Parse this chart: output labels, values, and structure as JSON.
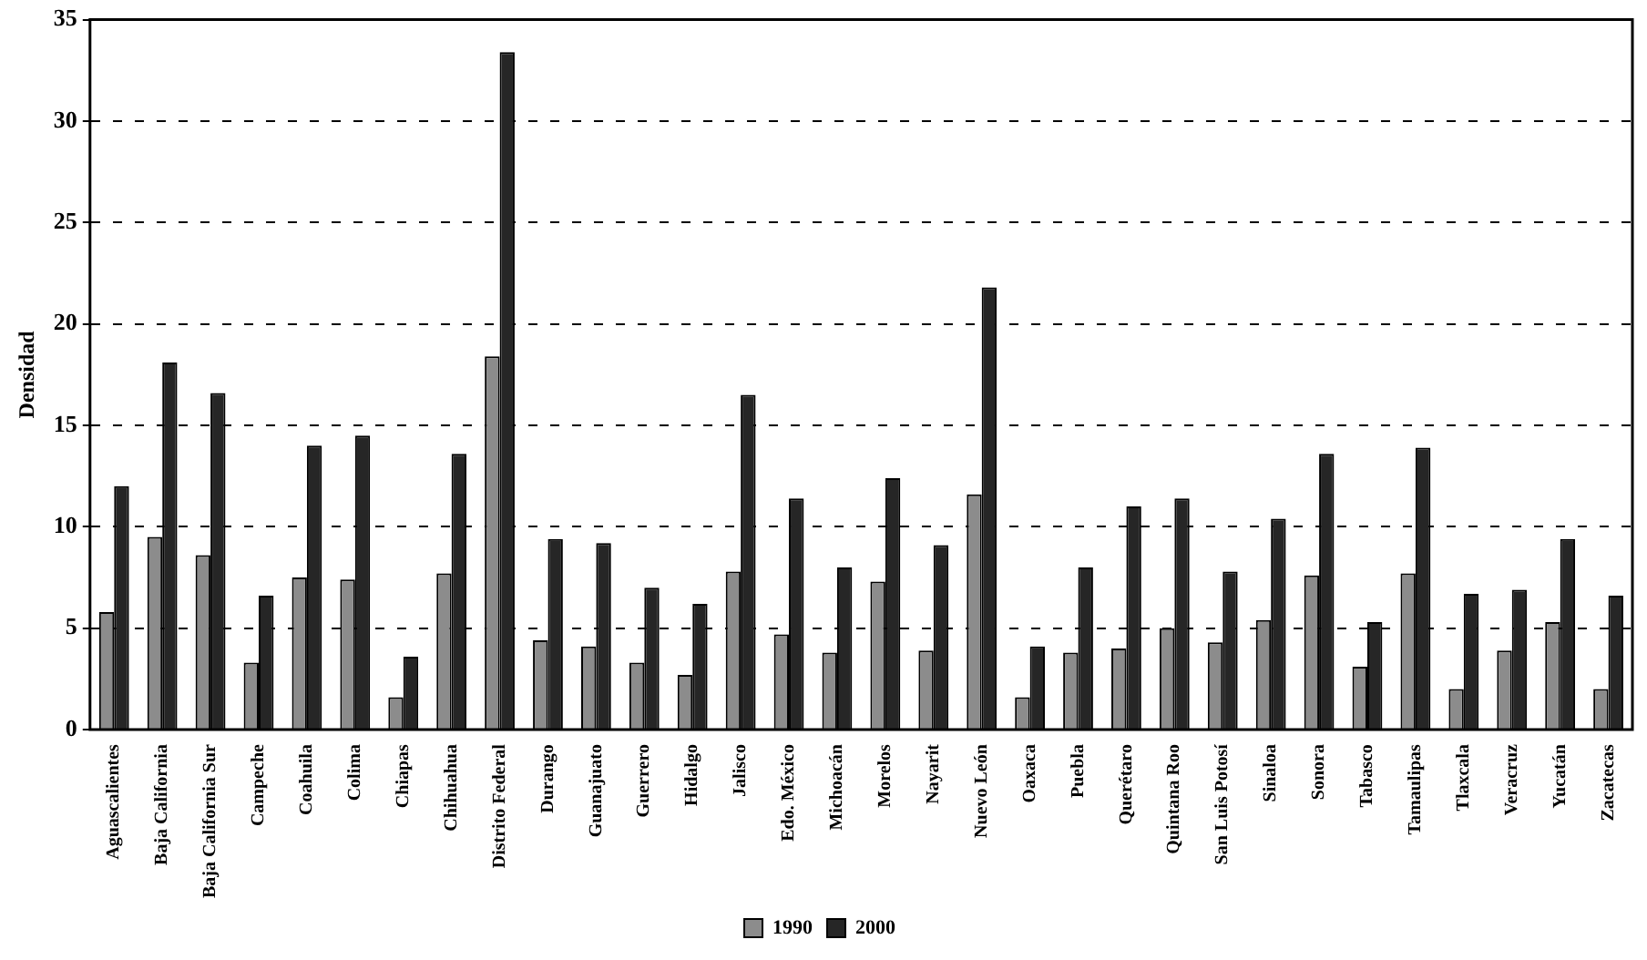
{
  "chart_data": {
    "type": "bar",
    "ylabel": "Densidad",
    "categories": [
      "Aguascalientes",
      "Baja California",
      "Baja California Sur",
      "Campeche",
      "Coahuila",
      "Colima",
      "Chiapas",
      "Chihuahua",
      "Distrito Federal",
      "Durango",
      "Guanajuato",
      "Guerrero",
      "Hidalgo",
      "Jalisco",
      "Edo. México",
      "Michoacán",
      "Morelos",
      "Nayarit",
      "Nuevo León",
      "Oaxaca",
      "Puebla",
      "Querétaro",
      "Quintana Roo",
      "San Luis Potosí",
      "Sinaloa",
      "Sonora",
      "Tabasco",
      "Tamaulipas",
      "Tlaxcala",
      "Veracruz",
      "Yucatán",
      "Zacatecas"
    ],
    "series": [
      {
        "name": "1990",
        "color": "#8c8c8c",
        "values": [
          5.8,
          9.5,
          8.6,
          3.3,
          7.5,
          7.4,
          1.6,
          7.7,
          18.4,
          4.4,
          4.1,
          3.3,
          2.7,
          7.8,
          4.7,
          3.8,
          7.3,
          3.9,
          11.6,
          1.6,
          3.8,
          4.0,
          5.0,
          4.3,
          5.4,
          7.6,
          3.1,
          7.7,
          2.0,
          3.9,
          5.3,
          2.0
        ]
      },
      {
        "name": "2000",
        "color": "#262626",
        "values": [
          12.0,
          18.1,
          16.6,
          6.6,
          14.0,
          14.5,
          3.6,
          13.6,
          33.4,
          9.4,
          9.2,
          7.0,
          6.2,
          16.5,
          11.4,
          8.0,
          12.4,
          9.1,
          21.8,
          4.1,
          8.0,
          11.0,
          11.4,
          7.8,
          10.4,
          13.6,
          5.3,
          13.9,
          6.7,
          6.9,
          9.4,
          6.6
        ]
      }
    ],
    "ylim": [
      0,
      35
    ],
    "yticks": [
      0,
      5,
      10,
      15,
      20,
      25,
      30,
      35
    ],
    "grid": "y",
    "legend": "bottom"
  }
}
